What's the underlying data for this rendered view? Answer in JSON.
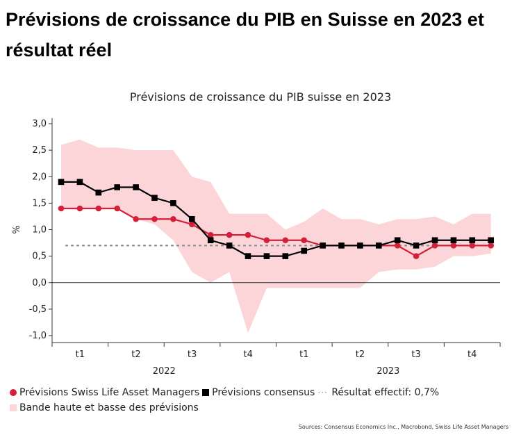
{
  "headline": "Prévisions de croissance du PIB en Suisse en 2023 et résultat réel",
  "sources": "Sources: Consensus Economics Inc., Macrobond, Swiss Life Asset Managers",
  "legend": {
    "swiss_life": "Prévisions Swiss Life Asset Managers",
    "consensus": "Prévisions consensus",
    "actual": "Résultat effectif: 0,7%",
    "band": "Bande haute et basse des prévisions"
  },
  "colors": {
    "swiss_life": "#d32038",
    "consensus": "#000000",
    "band": "#fbd5d8",
    "actual": "#8c8c8c"
  },
  "chart_data": {
    "type": "line",
    "title": "Prévisions de croissance du PIB suisse en 2023",
    "ylabel": "%",
    "xlabel": "",
    "ylim": [
      -1.0,
      3.0
    ],
    "yticks": [
      3.0,
      2.5,
      2.0,
      1.5,
      1.0,
      0.5,
      0.0,
      -0.5,
      -1.0
    ],
    "ytick_labels": [
      "3,0",
      "2,5",
      "2,0",
      "1,5",
      "1,0",
      "0,5",
      "0,0",
      "-0,5",
      "-1,0"
    ],
    "x_quarters": [
      "t1",
      "t2",
      "t3",
      "t4",
      "t1",
      "t2",
      "t3",
      "t4"
    ],
    "x_years": [
      "2022",
      "2023"
    ],
    "x": [
      "2022-01",
      "2022-02",
      "2022-03",
      "2022-04",
      "2022-05",
      "2022-06",
      "2022-07",
      "2022-08",
      "2022-09",
      "2022-10",
      "2022-11",
      "2022-12",
      "2023-01",
      "2023-02",
      "2023-03",
      "2023-04",
      "2023-05",
      "2023-06",
      "2023-07",
      "2023-08",
      "2023-09",
      "2023-10",
      "2023-11",
      "2023-12"
    ],
    "series": [
      {
        "name": "Prévisions Swiss Life Asset Managers",
        "values": [
          1.4,
          1.4,
          1.4,
          1.4,
          1.2,
          1.2,
          1.2,
          1.1,
          0.9,
          0.9,
          0.9,
          0.8,
          0.8,
          0.8,
          0.7,
          0.7,
          0.7,
          0.7,
          0.7,
          0.5,
          0.7,
          0.7,
          0.7,
          0.7
        ]
      },
      {
        "name": "Prévisions consensus",
        "values": [
          1.9,
          1.9,
          1.7,
          1.8,
          1.8,
          1.6,
          1.5,
          1.2,
          0.8,
          0.7,
          0.5,
          0.5,
          0.5,
          0.6,
          0.7,
          0.7,
          0.7,
          0.7,
          0.8,
          0.7,
          0.8,
          0.8,
          0.8,
          0.8
        ]
      }
    ],
    "band": {
      "name": "Bande haute et basse des prévisions",
      "high": [
        2.6,
        2.7,
        2.55,
        2.55,
        2.5,
        2.5,
        2.5,
        2.0,
        1.9,
        1.3,
        1.3,
        1.3,
        1.0,
        1.15,
        1.4,
        1.2,
        1.2,
        1.1,
        1.2,
        1.2,
        1.25,
        1.1,
        1.3,
        1.3
      ],
      "low": [
        1.4,
        1.4,
        1.4,
        1.4,
        1.2,
        1.1,
        0.8,
        0.2,
        0.0,
        0.2,
        -0.95,
        -0.1,
        -0.1,
        -0.1,
        -0.1,
        -0.1,
        -0.1,
        0.2,
        0.25,
        0.25,
        0.3,
        0.5,
        0.5,
        0.55
      ]
    },
    "reference_line": {
      "name": "Résultat effectif: 0,7%",
      "value": 0.7
    },
    "grid": false,
    "legend_position": "bottom"
  }
}
